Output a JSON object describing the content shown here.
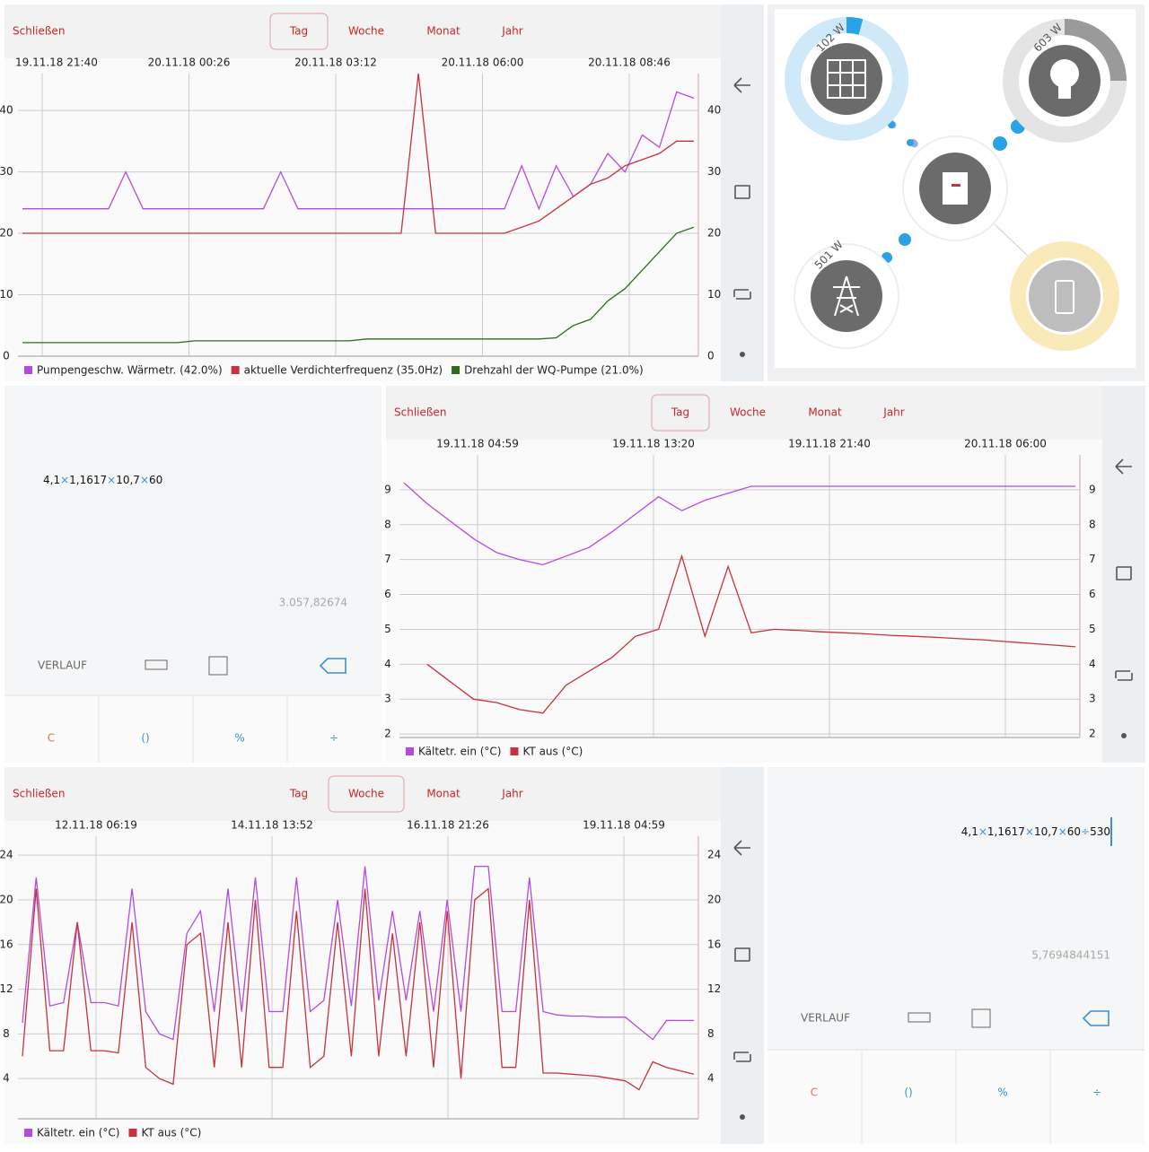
{
  "chart_data": [
    {
      "type": "line",
      "close_label": "Schließen",
      "tabs": [
        "Tag",
        "Woche",
        "Monat",
        "Jahr"
      ],
      "active_tab": 0,
      "x_labels": [
        "19.11.18 21:40",
        "20.11.18 00:26",
        "20.11.18 03:12",
        "20.11.18 06:00",
        "20.11.18 08:46"
      ],
      "ylim": [
        0,
        46
      ],
      "yticks": [
        0,
        10,
        20,
        30,
        40
      ],
      "grid": true,
      "series": [
        {
          "name": "Pumpengeschw. Wärmetr. (42.0%)",
          "color": "#b44be1",
          "values": [
            24,
            24,
            24,
            24,
            24,
            24,
            30,
            24,
            24,
            24,
            24,
            24,
            24,
            24,
            24,
            30,
            24,
            24,
            24,
            24,
            24,
            24,
            24,
            24,
            24,
            24,
            24,
            24,
            24,
            31,
            24,
            31,
            26,
            28,
            33,
            30,
            36,
            34,
            43,
            42
          ]
        },
        {
          "name": "aktuelle Verdichterfrequenz (35.0Hz)",
          "color": "#c8323c",
          "values": [
            20,
            20,
            20,
            20,
            20,
            20,
            20,
            20,
            20,
            20,
            20,
            20,
            20,
            20,
            20,
            20,
            20,
            20,
            20,
            20,
            20,
            20,
            20,
            46,
            20,
            20,
            20,
            20,
            20,
            21,
            22,
            24,
            26,
            28,
            29,
            31,
            32,
            33,
            35,
            35
          ]
        },
        {
          "name": "Drehzahl der WQ-Pumpe (21.0%)",
          "color": "#2e6b1e",
          "values": [
            2.2,
            2.2,
            2.2,
            2.2,
            2.2,
            2.2,
            2.2,
            2.2,
            2.2,
            2.2,
            2.5,
            2.5,
            2.5,
            2.5,
            2.5,
            2.5,
            2.5,
            2.5,
            2.5,
            2.5,
            2.8,
            2.8,
            2.8,
            2.8,
            2.8,
            2.8,
            2.8,
            2.8,
            2.8,
            2.8,
            2.8,
            3,
            5,
            6,
            9,
            11,
            14,
            17,
            20,
            21
          ]
        }
      ]
    },
    {
      "type": "line",
      "close_label": "Schließen",
      "tabs": [
        "Tag",
        "Woche",
        "Monat",
        "Jahr"
      ],
      "active_tab": 0,
      "x_labels": [
        "19.11.18 04:59",
        "19.11.18 13:20",
        "19.11.18 21:40",
        "20.11.18 06:00"
      ],
      "ylim": [
        1.9,
        10
      ],
      "yticks": [
        2,
        3,
        4,
        5,
        6,
        7,
        8,
        9
      ],
      "grid": true,
      "series": [
        {
          "name": "Kältetr. ein (°C)",
          "color": "#b44be1",
          "values": [
            9.2,
            8.6,
            8.1,
            7.6,
            7.2,
            7.0,
            6.85,
            7.1,
            7.35,
            7.8,
            8.3,
            8.8,
            8.4,
            8.7,
            8.9,
            9.1,
            9.1,
            9.1,
            9.1,
            9.1,
            9.1,
            9.1,
            9.1,
            9.1,
            9.1,
            9.1,
            9.1,
            9.1,
            9.1,
            9.1
          ]
        },
        {
          "name": "KT aus (°C)",
          "color": "#c8323c",
          "values": [
            null,
            4.0,
            3.5,
            3.0,
            2.9,
            2.7,
            2.6,
            3.4,
            3.8,
            4.2,
            4.8,
            5.0,
            7.1,
            4.8,
            6.8,
            4.9,
            5.0,
            4.97,
            4.93,
            4.9,
            4.87,
            4.83,
            4.8,
            4.77,
            4.73,
            4.7,
            4.65,
            4.6,
            4.55,
            4.5
          ]
        }
      ]
    },
    {
      "type": "line",
      "close_label": "Schließen",
      "tabs": [
        "Tag",
        "Woche",
        "Monat",
        "Jahr"
      ],
      "active_tab": 1,
      "x_labels": [
        "12.11.18 06:19",
        "14.11.18 13:52",
        "16.11.18 21:26",
        "19.11.18 04:59"
      ],
      "ylim": [
        0.4,
        25.7
      ],
      "yticks": [
        4,
        8,
        12,
        16,
        20,
        24
      ],
      "grid": true,
      "series": [
        {
          "name": "Kältetr. ein (°C)",
          "color": "#b44be1",
          "values": [
            9,
            22,
            10.5,
            10.8,
            18,
            10.8,
            10.8,
            10.5,
            21,
            10,
            8,
            7.5,
            17,
            19,
            10,
            21,
            10,
            22,
            10,
            10,
            22,
            10,
            11,
            20,
            10.5,
            23,
            11,
            19,
            11,
            19,
            10,
            20,
            10,
            23,
            23,
            10,
            10,
            22,
            10,
            9.7,
            9.6,
            9.6,
            9.5,
            9.5,
            9.5,
            8.5,
            7.5,
            9.2,
            9.2,
            9.2
          ]
        },
        {
          "name": "KT aus (°C)",
          "color": "#c8323c",
          "values": [
            6,
            21,
            6.5,
            6.5,
            18,
            6.5,
            6.5,
            6.3,
            18,
            5,
            4,
            3.5,
            16,
            17,
            5,
            18,
            5,
            20,
            5,
            5,
            19,
            5,
            6,
            18,
            6,
            21,
            6,
            17,
            6,
            18,
            5,
            19,
            4,
            20,
            21,
            5,
            5,
            20,
            4.5,
            4.5,
            4.4,
            4.3,
            4.2,
            4.0,
            3.8,
            3.0,
            5.5,
            5.0,
            4.7,
            4.4
          ]
        }
      ]
    }
  ],
  "energy": {
    "solar": "102 W",
    "consumption": "603 W",
    "grid": "501 W"
  },
  "calculators": [
    {
      "expression": "4,1×1,1617×10,7×60",
      "result": "3.057,82674",
      "history": "VERLAUF",
      "buttons": [
        "C",
        "()",
        "%",
        "÷"
      ]
    },
    {
      "expression": "4,1×1,1617×10,7×60÷530",
      "result": "5,7694844151",
      "history": "VERLAUF",
      "buttons": [
        "C",
        "()",
        "%",
        "÷"
      ]
    }
  ]
}
